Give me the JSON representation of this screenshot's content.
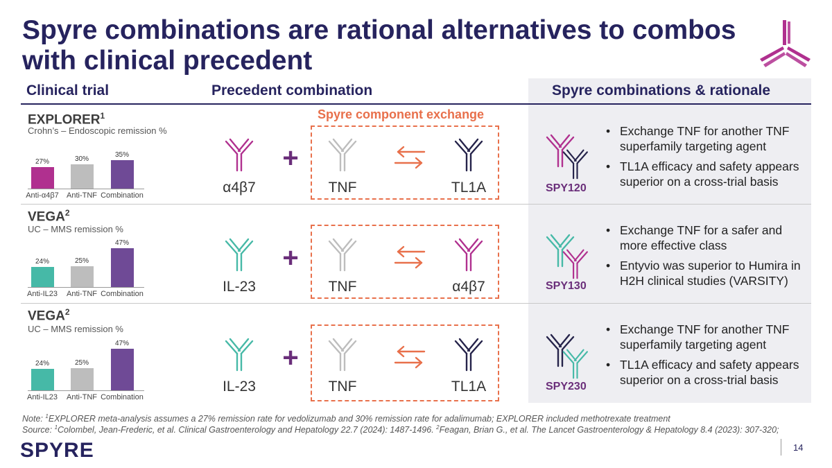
{
  "title": "Spyre combinations are rational alternatives to combos with clinical precedent",
  "headers": {
    "clinical_trial": "Clinical trial",
    "precedent": "Precedent combination",
    "spyre": "Spyre combinations & rationale"
  },
  "exchange_label": "Spyre component exchange",
  "colors": {
    "navy": "#26235e",
    "magenta": "#b0308f",
    "purple": "#6f4a96",
    "teal": "#46b9a7",
    "gray": "#bdbdbd",
    "orange": "#e8704b",
    "dark_antibody": "#25234a"
  },
  "rows": [
    {
      "trial": "EXPLORER",
      "trial_sup": "1",
      "subtitle": "Crohn’s – Endoscopic remission %",
      "chart_data": {
        "type": "bar",
        "categories": [
          "Anti-α4β7",
          "Anti-TNF",
          "Combination"
        ],
        "values": [
          27,
          30,
          35
        ],
        "value_labels": [
          "27%",
          "30%",
          "35%"
        ],
        "colors": [
          "#b0308f",
          "#bdbdbd",
          "#6f4a96"
        ]
      },
      "precedent_left": "α4β7",
      "exchange_from": "TNF",
      "exchange_to": "TL1A",
      "spyre_product": "SPY120",
      "bullets": [
        "Exchange TNF for another TNF superfamily targeting agent",
        "TL1A efficacy and safety appears superior on a cross-trial basis"
      ]
    },
    {
      "trial": "VEGA",
      "trial_sup": "2",
      "subtitle": "UC – MMS remission %",
      "chart_data": {
        "type": "bar",
        "categories": [
          "Anti-IL23",
          "Anti-TNF",
          "Combination"
        ],
        "values": [
          24,
          25,
          47
        ],
        "value_labels": [
          "24%",
          "25%",
          "47%"
        ],
        "colors": [
          "#46b9a7",
          "#bdbdbd",
          "#6f4a96"
        ]
      },
      "precedent_left": "IL-23",
      "exchange_from": "TNF",
      "exchange_to": "α4β7",
      "spyre_product": "SPY130",
      "bullets": [
        "Exchange TNF for a safer and more effective class",
        "Entyvio was superior to Humira in H2H clinical studies (VARSITY)"
      ]
    },
    {
      "trial": "VEGA",
      "trial_sup": "2",
      "subtitle": "UC – MMS remission %",
      "chart_data": {
        "type": "bar",
        "categories": [
          "Anti-IL23",
          "Anti-TNF",
          "Combination"
        ],
        "values": [
          24,
          25,
          47
        ],
        "value_labels": [
          "24%",
          "25%",
          "47%"
        ],
        "colors": [
          "#46b9a7",
          "#bdbdbd",
          "#6f4a96"
        ]
      },
      "precedent_left": "IL-23",
      "exchange_from": "TNF",
      "exchange_to": "TL1A",
      "spyre_product": "SPY230",
      "bullets": [
        "Exchange TNF for another TNF superfamily targeting agent",
        "TL1A efficacy and safety appears superior on a cross-trial basis"
      ]
    }
  ],
  "note": {
    "prefix": "Note: ",
    "sup": "1",
    "text": "EXPLORER meta-analysis assumes a 27% remission rate for vedolizumab and 30% remission rate for adalimumab; EXPLORER included methotrexate treatment"
  },
  "source": {
    "prefix": "Source: ",
    "sup1": "1",
    "text1": "Colombel, Jean-Frederic, et al. Clinical Gastroenterology and Hepatology 22.7 (2024): 1487-1496. ",
    "sup2": "2",
    "text2": "Feagan, Brian G., et al. The Lancet Gastroenterology & Hepatology 8.4 (2023): 307-320;"
  },
  "logo_text": "SPYRE",
  "page_number": "14"
}
